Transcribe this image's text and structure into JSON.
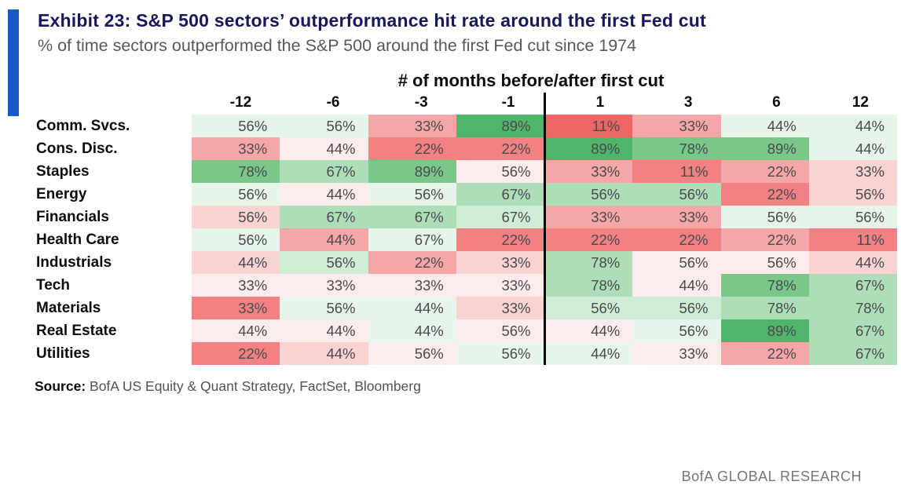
{
  "header": {
    "title": "Exhibit 23: S&P 500 sectors’ outperformance hit rate around the first Fed cut",
    "subtitle": "% of time sectors outperformed the S&P 500 around the first Fed cut since 1974",
    "accent_color": "#1659c8"
  },
  "chart_data": {
    "type": "heatmap",
    "title": "Exhibit 23: S&P 500 sectors’ outperformance hit rate around the first Fed cut",
    "subtitle": "% of time sectors outperformed the S&P 500 around the first Fed cut since 1974",
    "axis_title": "# of months before/after first cut",
    "value_suffix": "%",
    "columns": [
      "-12",
      "-6",
      "-3",
      "-1",
      "1",
      "3",
      "6",
      "12"
    ],
    "divider_after_column_index": 3,
    "rows": [
      {
        "sector": "Comm. Svcs.",
        "values": [
          56,
          56,
          33,
          89,
          11,
          33,
          44,
          44
        ],
        "colors": [
          "G1",
          "G1",
          "R3",
          "G5",
          "R5",
          "R3",
          "G1",
          "G1"
        ]
      },
      {
        "sector": "Cons. Disc.",
        "values": [
          33,
          44,
          22,
          22,
          89,
          78,
          89,
          44
        ],
        "colors": [
          "R3",
          "R1",
          "R4",
          "R4",
          "G5",
          "G4",
          "G4",
          "G1"
        ]
      },
      {
        "sector": "Staples",
        "values": [
          78,
          67,
          89,
          56,
          33,
          11,
          22,
          33
        ],
        "colors": [
          "G4",
          "G3",
          "G4",
          "R1",
          "R3",
          "R4",
          "R3",
          "R2"
        ]
      },
      {
        "sector": "Energy",
        "values": [
          56,
          44,
          56,
          67,
          56,
          56,
          22,
          56
        ],
        "colors": [
          "G1",
          "R1",
          "G1",
          "G3",
          "G3",
          "G3",
          "R4",
          "R2"
        ]
      },
      {
        "sector": "Financials",
        "values": [
          56,
          67,
          67,
          67,
          33,
          33,
          56,
          56
        ],
        "colors": [
          "R2",
          "G3",
          "G3",
          "G2",
          "R3",
          "R3",
          "G1",
          "G1"
        ]
      },
      {
        "sector": "Health Care",
        "values": [
          56,
          44,
          67,
          22,
          22,
          22,
          22,
          11
        ],
        "colors": [
          "G1",
          "R3",
          "G1",
          "R4",
          "R4",
          "R4",
          "R3",
          "R4"
        ]
      },
      {
        "sector": "Industrials",
        "values": [
          44,
          56,
          22,
          33,
          78,
          56,
          56,
          44
        ],
        "colors": [
          "R2",
          "G2",
          "R3",
          "R2",
          "G3",
          "R1",
          "R1",
          "R2"
        ]
      },
      {
        "sector": "Tech",
        "values": [
          33,
          33,
          33,
          33,
          78,
          44,
          78,
          67
        ],
        "colors": [
          "R1",
          "R1",
          "R1",
          "R1",
          "G3",
          "R1",
          "G4",
          "G3"
        ]
      },
      {
        "sector": "Materials",
        "values": [
          33,
          56,
          44,
          33,
          56,
          56,
          78,
          78
        ],
        "colors": [
          "R4",
          "G1",
          "G1",
          "R2",
          "G2",
          "G2",
          "G3",
          "G3"
        ]
      },
      {
        "sector": "Real Estate",
        "values": [
          44,
          44,
          44,
          56,
          44,
          56,
          89,
          67
        ],
        "colors": [
          "R1",
          "R1",
          "G1",
          "R1",
          "R1",
          "G1",
          "G5",
          "G3"
        ]
      },
      {
        "sector": "Utilities",
        "values": [
          22,
          44,
          56,
          56,
          44,
          33,
          22,
          67
        ],
        "colors": [
          "R4",
          "R2",
          "R1",
          "G1",
          "G1",
          "R1",
          "R3",
          "G3"
        ]
      }
    ],
    "palette": {
      "G5": "#50b46b",
      "G4": "#7ac78a",
      "G3": "#aedeb8",
      "G2": "#cfecd6",
      "G1": "#e7f4ea",
      "R1": "#fcebeb",
      "R2": "#f9d2d2",
      "R3": "#f5a7a7",
      "R4": "#f18182",
      "R5": "#ee6565"
    },
    "legend_position": "none",
    "grid": false
  },
  "footer": {
    "source_label": "Source:",
    "source_text": " BofA US Equity & Quant Strategy, FactSet, Bloomberg",
    "branding": "BofA GLOBAL RESEARCH"
  }
}
